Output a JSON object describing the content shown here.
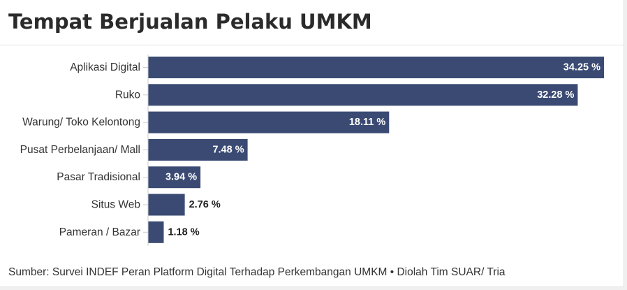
{
  "title": "Tempat Berjualan Pelaku UMKM",
  "source": "Sumber: Survei INDEF Peran Platform Digital Terhadap Perkembangan UMKM • Diolah Tim SUAR/ Tria",
  "colors": {
    "bar": "#3a4a72",
    "label_inside": "#ffffff",
    "label_outside": "#222222",
    "category": "#333333",
    "axis": "#cccccc"
  },
  "chart_data": {
    "type": "bar",
    "orientation": "horizontal",
    "title": "Tempat Berjualan Pelaku UMKM",
    "categories": [
      "Aplikasi Digital",
      "Ruko",
      "Warung/ Toko Kelontong",
      "Pusat Perbelanjaan/ Mall",
      "Pasar Tradisional",
      "Situs Web",
      "Pameran / Bazar"
    ],
    "values": [
      34.25,
      32.28,
      18.11,
      7.48,
      3.94,
      2.76,
      1.18
    ],
    "value_labels": [
      "34.25 %",
      "32.28 %",
      "18.11 %",
      "7.48 %",
      "3.94 %",
      "2.76 %",
      "1.18 %"
    ],
    "unit": "%",
    "xlim": [
      0,
      34.25
    ],
    "grid": false,
    "legend": "none"
  }
}
